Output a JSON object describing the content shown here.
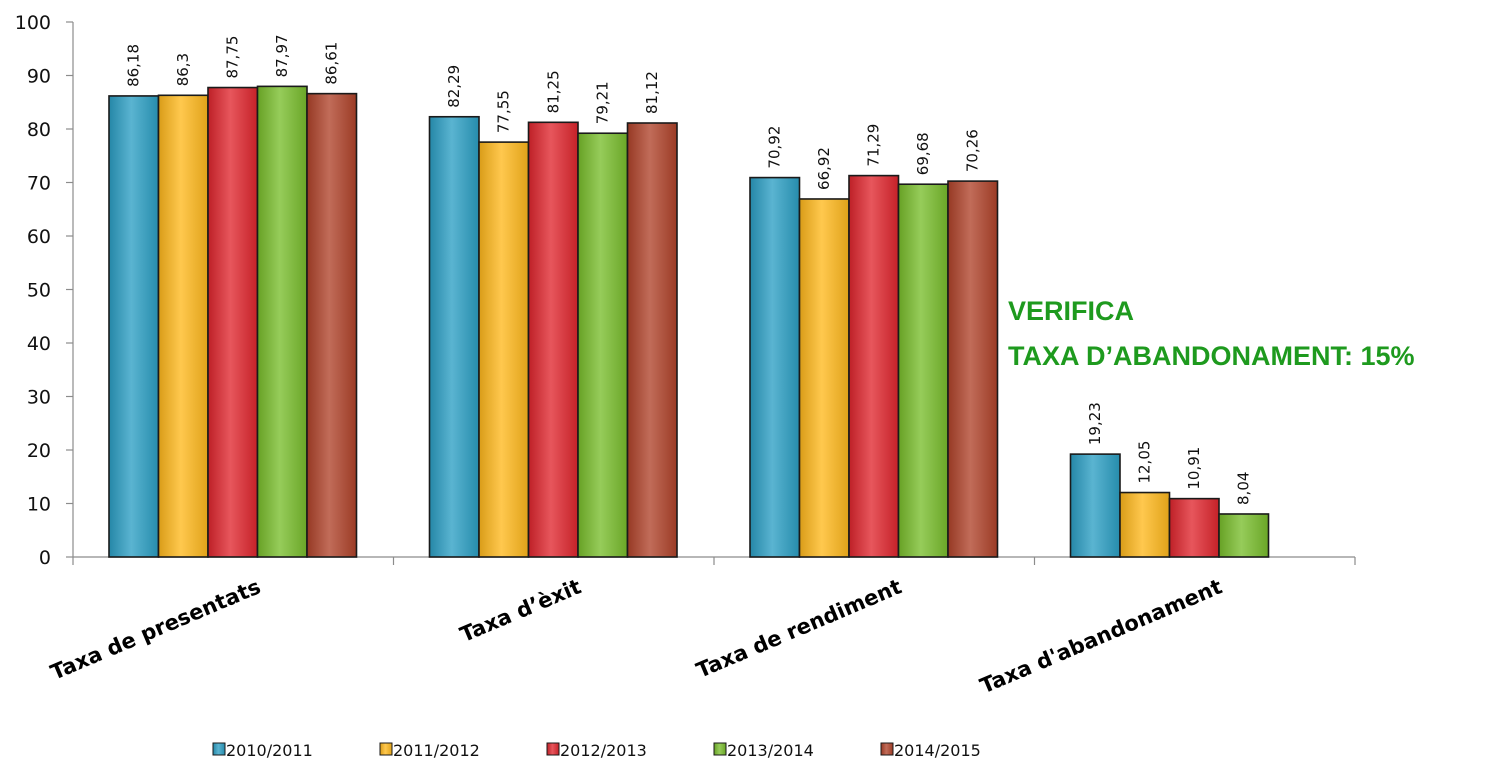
{
  "chart_data": {
    "type": "bar",
    "title": "",
    "xlabel": "",
    "ylabel": "",
    "ylim": [
      0,
      100
    ],
    "yticks": [
      0,
      10,
      20,
      30,
      40,
      50,
      60,
      70,
      80,
      90,
      100
    ],
    "grid": false,
    "legend_position": "bottom",
    "categories": [
      "Taxa de presentats",
      "Taxa d’èxit",
      "Taxa de rendiment",
      "Taxa d'abandonament"
    ],
    "series": [
      {
        "name": "2010/2011",
        "color": "#2b9fc4",
        "values": [
          86.18,
          82.29,
          70.92,
          19.23
        ],
        "labels": [
          "86,18",
          "82,29",
          "70,92",
          "19,23"
        ]
      },
      {
        "name": "2011/2012",
        "color": "#ffb81c",
        "values": [
          86.3,
          77.55,
          66.92,
          12.05
        ],
        "labels": [
          "86,3",
          "77,55",
          "66,92",
          "12,05"
        ]
      },
      {
        "name": "2012/2013",
        "color": "#e0262e",
        "values": [
          87.75,
          81.25,
          71.29,
          10.91
        ],
        "labels": [
          "87,75",
          "81,25",
          "71,29",
          "10,91"
        ]
      },
      {
        "name": "2013/2014",
        "color": "#79bd2c",
        "values": [
          87.97,
          79.21,
          69.68,
          8.04
        ],
        "labels": [
          "87,97",
          "79,21",
          "69,68",
          "8,04"
        ]
      },
      {
        "name": "2014/2015",
        "color": "#b0432a",
        "values": [
          86.61,
          81.12,
          70.26,
          null
        ],
        "labels": [
          "86,61",
          "81,12",
          "70,26",
          ""
        ]
      }
    ],
    "annotations": [
      "VERIFICA",
      "TAXA D’ABANDONAMENT: 15%"
    ]
  },
  "annotation": {
    "line1": "VERIFICA",
    "line2": "TAXA D’ABANDONAMENT: 15%"
  }
}
